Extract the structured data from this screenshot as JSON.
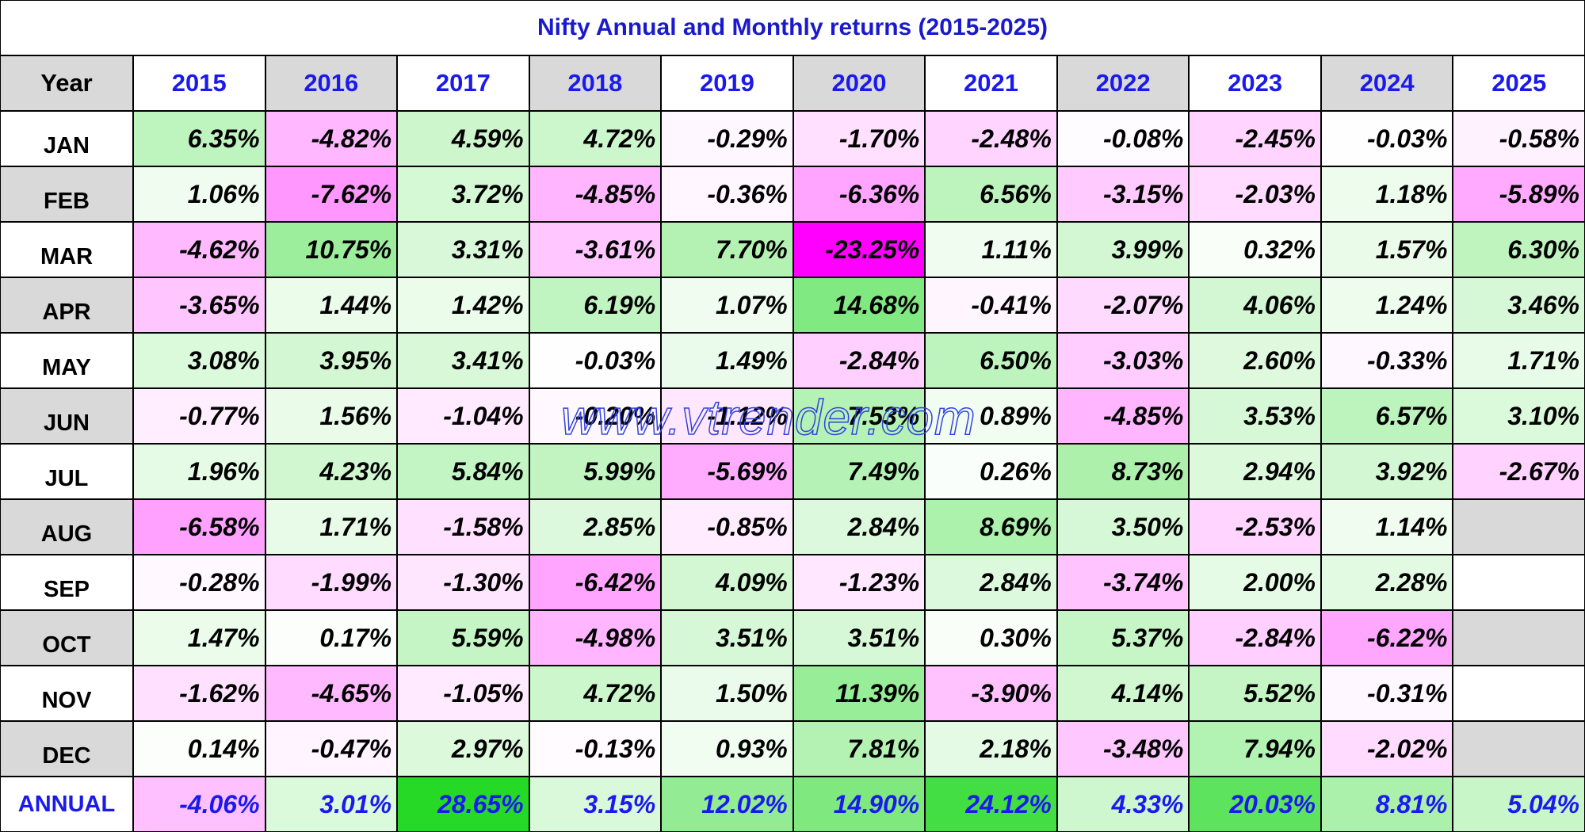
{
  "title": "Nifty Annual and Monthly returns (2015-2025)",
  "watermark": "www.vtrender.com",
  "table": {
    "header": [
      "Year",
      "2015",
      "2016",
      "2017",
      "2018",
      "2019",
      "2020",
      "2021",
      "2022",
      "2023",
      "2024",
      "2025"
    ],
    "rows": [
      [
        "JAN",
        "6.35%",
        "-4.82%",
        "4.59%",
        "4.72%",
        "-0.29%",
        "-1.70%",
        "-2.48%",
        "-0.08%",
        "-2.45%",
        "-0.03%",
        "-0.58%"
      ],
      [
        "FEB",
        "1.06%",
        "-7.62%",
        "3.72%",
        "-4.85%",
        "-0.36%",
        "-6.36%",
        "6.56%",
        "-3.15%",
        "-2.03%",
        "1.18%",
        "-5.89%"
      ],
      [
        "MAR",
        "-4.62%",
        "10.75%",
        "3.31%",
        "-3.61%",
        "7.70%",
        "-23.25%",
        "1.11%",
        "3.99%",
        "0.32%",
        "1.57%",
        "6.30%"
      ],
      [
        "APR",
        "-3.65%",
        "1.44%",
        "1.42%",
        "6.19%",
        "1.07%",
        "14.68%",
        "-0.41%",
        "-2.07%",
        "4.06%",
        "1.24%",
        "3.46%"
      ],
      [
        "MAY",
        "3.08%",
        "3.95%",
        "3.41%",
        "-0.03%",
        "1.49%",
        "-2.84%",
        "6.50%",
        "-3.03%",
        "2.60%",
        "-0.33%",
        "1.71%"
      ],
      [
        "JUN",
        "-0.77%",
        "1.56%",
        "-1.04%",
        "-0.20%",
        "-1.12%",
        "7.53%",
        "0.89%",
        "-4.85%",
        "3.53%",
        "6.57%",
        "3.10%"
      ],
      [
        "JUL",
        "1.96%",
        "4.23%",
        "5.84%",
        "5.99%",
        "-5.69%",
        "7.49%",
        "0.26%",
        "8.73%",
        "2.94%",
        "3.92%",
        "-2.67%"
      ],
      [
        "AUG",
        "-6.58%",
        "1.71%",
        "-1.58%",
        "2.85%",
        "-0.85%",
        "2.84%",
        "8.69%",
        "3.50%",
        "-2.53%",
        "1.14%",
        null
      ],
      [
        "SEP",
        "-0.28%",
        "-1.99%",
        "-1.30%",
        "-6.42%",
        "4.09%",
        "-1.23%",
        "2.84%",
        "-3.74%",
        "2.00%",
        "2.28%",
        null
      ],
      [
        "OCT",
        "1.47%",
        "0.17%",
        "5.59%",
        "-4.98%",
        "3.51%",
        "3.51%",
        "0.30%",
        "5.37%",
        "-2.84%",
        "-6.22%",
        null
      ],
      [
        "NOV",
        "-1.62%",
        "-4.65%",
        "-1.05%",
        "4.72%",
        "1.50%",
        "11.39%",
        "-3.90%",
        "4.14%",
        "5.52%",
        "-0.31%",
        null
      ],
      [
        "DEC",
        "0.14%",
        "-0.47%",
        "2.97%",
        "-0.13%",
        "0.93%",
        "7.81%",
        "2.18%",
        "-3.48%",
        "7.94%",
        "-2.02%",
        null
      ],
      [
        "ANNUAL",
        "-4.06%",
        "3.01%",
        "28.65%",
        "3.15%",
        "12.02%",
        "14.90%",
        "24.12%",
        "4.33%",
        "20.03%",
        "8.81%",
        "5.04%"
      ]
    ]
  }
}
